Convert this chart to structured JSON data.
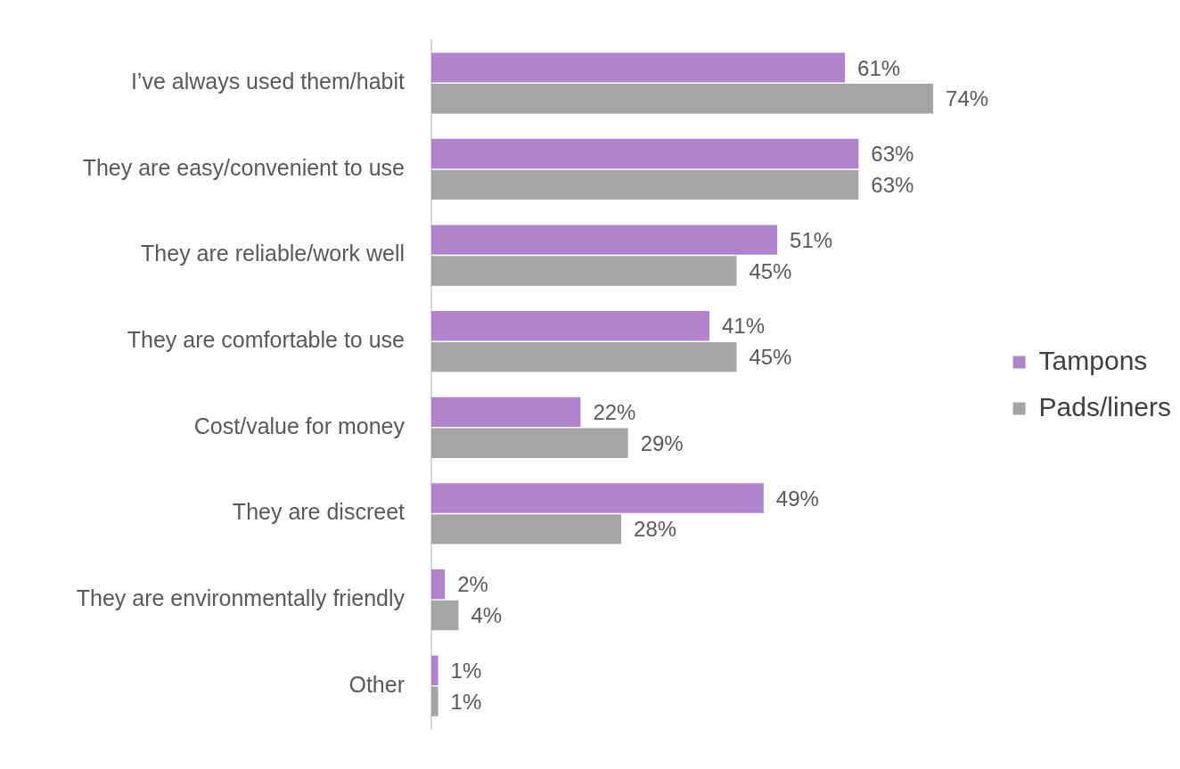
{
  "chart_data": {
    "type": "bar",
    "orientation": "horizontal",
    "legend": "right",
    "categories": [
      "I’ve always used them/habit",
      "They are easy/convenient to use",
      "They are reliable/work well",
      "They are comfortable to use",
      "Cost/value for money",
      "They are discreet",
      "They are environmentally friendly",
      "Other"
    ],
    "series": [
      {
        "name": "Tampons",
        "color": "#b084cc",
        "values": [
          61,
          63,
          51,
          41,
          22,
          49,
          2,
          1
        ],
        "value_labels": [
          "61%",
          "63%",
          "51%",
          "41%",
          "22%",
          "49%",
          "2%",
          "1%"
        ]
      },
      {
        "name": "Pads/liners",
        "color": "#a5a5a5",
        "values": [
          74,
          63,
          45,
          45,
          29,
          28,
          4,
          1
        ],
        "value_labels": [
          "74%",
          "63%",
          "45%",
          "45%",
          "29%",
          "28%",
          "4%",
          "1%"
        ]
      }
    ]
  }
}
